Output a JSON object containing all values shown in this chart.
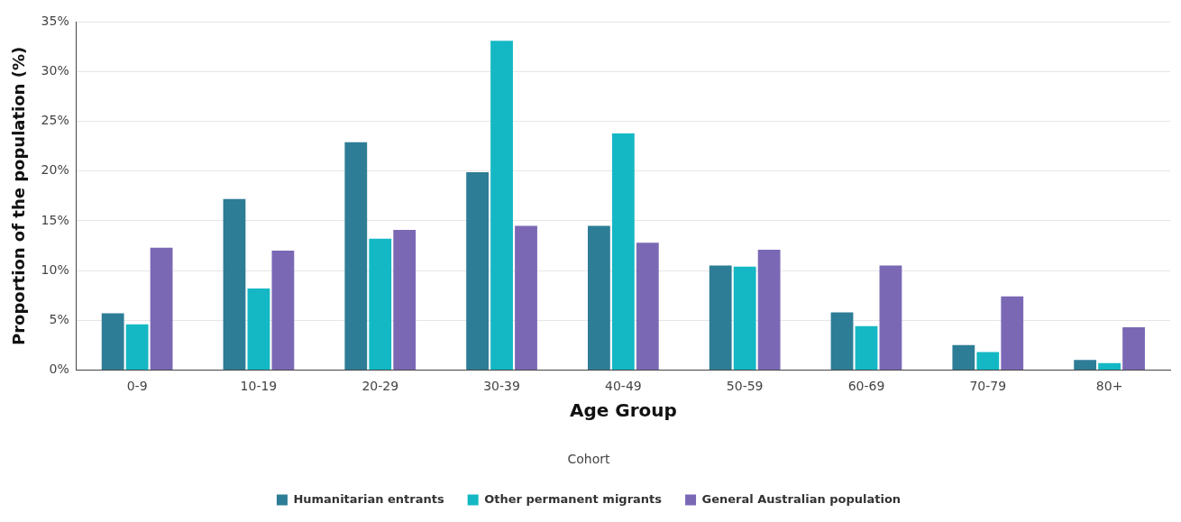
{
  "chart_data": {
    "type": "bar",
    "xlabel": "Age Group",
    "ylabel": "Proportion of the population (%)",
    "legend_title": "Cohort",
    "categories": [
      "0-9",
      "10-19",
      "20-29",
      "30-39",
      "40-49",
      "50-59",
      "60-69",
      "70-79",
      "80+"
    ],
    "series": [
      {
        "name": "Humanitarian entrants",
        "color": "#2e7d96",
        "values": [
          5.7,
          17.2,
          22.9,
          19.9,
          14.5,
          10.5,
          5.8,
          2.5,
          1.0
        ]
      },
      {
        "name": "Other permanent migrants",
        "color": "#14b8c4",
        "values": [
          4.6,
          8.2,
          13.2,
          33.1,
          23.8,
          10.4,
          4.4,
          1.8,
          0.7
        ]
      },
      {
        "name": "General Australian population",
        "color": "#7b68b5",
        "values": [
          12.3,
          12.0,
          14.1,
          14.5,
          12.8,
          12.1,
          10.5,
          7.4,
          4.3
        ]
      }
    ],
    "ylim": [
      0,
      35
    ],
    "yticks": [
      {
        "value": 0,
        "label": "0%"
      },
      {
        "value": 5,
        "label": "5%"
      },
      {
        "value": 10,
        "label": "10%"
      },
      {
        "value": 15,
        "label": "15%"
      },
      {
        "value": 20,
        "label": "20%"
      },
      {
        "value": 25,
        "label": "25%"
      },
      {
        "value": 30,
        "label": "30%"
      },
      {
        "value": 35,
        "label": "35%"
      }
    ],
    "grid": "y",
    "legend": "bottom"
  }
}
